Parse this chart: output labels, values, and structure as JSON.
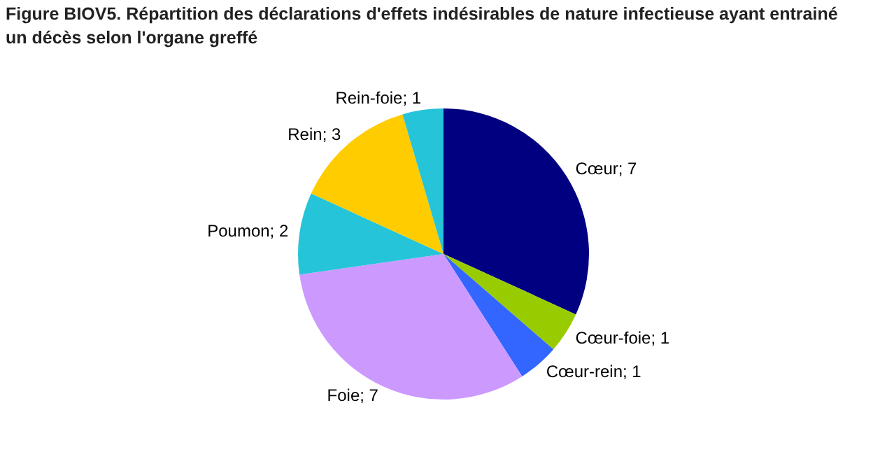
{
  "chart_data": {
    "type": "pie",
    "title": "Figure BIOV5. Répartition des déclarations d'effets indésirables de nature infectieuse ayant entrainé un décès selon l'organe greffé",
    "categories": [
      "Cœur",
      "Cœur-foie",
      "Cœur-rein",
      "Foie",
      "Poumon",
      "Rein",
      "Rein-foie"
    ],
    "values": [
      7,
      1,
      1,
      7,
      2,
      3,
      1
    ],
    "colors": [
      "#000080",
      "#99cc00",
      "#3366ff",
      "#cc99ff",
      "#26c4d8",
      "#ffcc00",
      "#26c4d8"
    ],
    "value_labels": [
      "; 7",
      "; 1",
      "; 1",
      "; 7",
      "; 2",
      "; 3",
      "; 1"
    ],
    "legend": false
  }
}
